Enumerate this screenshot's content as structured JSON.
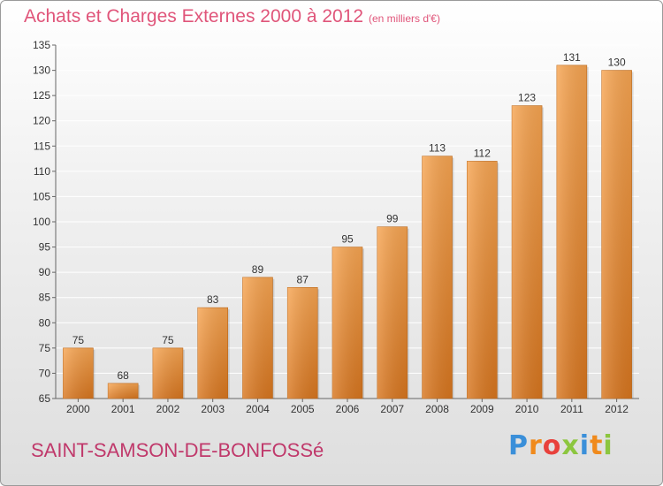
{
  "header": {
    "title": "Achats et Charges Externes 2000 à 2012",
    "subtitle": "(en milliers d'€)"
  },
  "footer": {
    "commune": "SAINT-SAMSON-DE-BONFOSSé",
    "logo_text": "Proxiti",
    "logo_letters": [
      {
        "char": "P",
        "color": "#3a8fd9"
      },
      {
        "char": "r",
        "color": "#f08a1c"
      },
      {
        "char": "o",
        "color": "#e8413c"
      },
      {
        "char": "x",
        "color": "#8cc63f"
      },
      {
        "char": "i",
        "color": "#3a8fd9"
      },
      {
        "char": "t",
        "color": "#f08a1c"
      },
      {
        "char": "i",
        "color": "#8cc63f"
      }
    ]
  },
  "colors": {
    "bar_top": "#f7a552",
    "bar_bottom": "#d8761f",
    "grid": "#ffffff",
    "title": "#e0557a"
  },
  "chart_data": {
    "type": "bar",
    "categories": [
      "2000",
      "2001",
      "2002",
      "2003",
      "2004",
      "2005",
      "2006",
      "2007",
      "2008",
      "2009",
      "2010",
      "2011",
      "2012"
    ],
    "values": [
      75,
      68,
      75,
      83,
      89,
      87,
      95,
      99,
      113,
      112,
      123,
      131,
      130
    ],
    "ylim": [
      65,
      135
    ],
    "yticks": [
      65,
      70,
      75,
      80,
      85,
      90,
      95,
      100,
      105,
      110,
      115,
      120,
      125,
      130,
      135
    ],
    "grid": true,
    "legend": "none"
  }
}
